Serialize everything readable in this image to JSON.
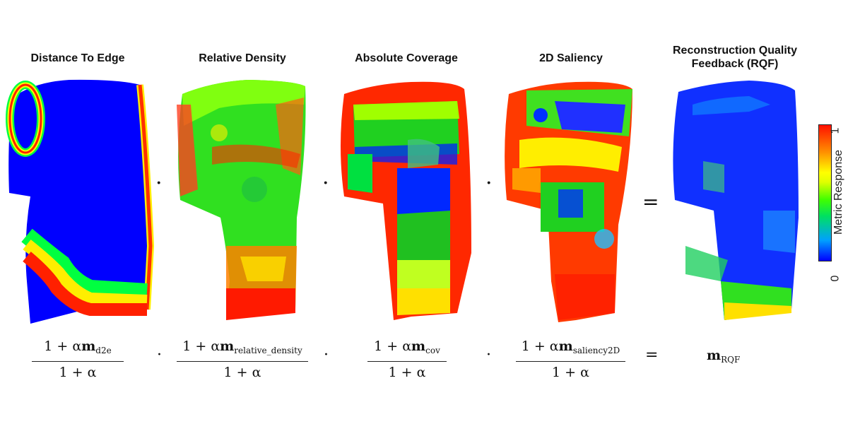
{
  "panels": [
    {
      "title": "Distance To Edge"
    },
    {
      "title": "Relative Density"
    },
    {
      "title": "Absolute Coverage"
    },
    {
      "title": "2D Saliency"
    },
    {
      "title_line1": "Reconstruction Quality",
      "title_line2": "Feedback (RQF)"
    }
  ],
  "operators": {
    "dot": "·",
    "equals": "="
  },
  "formulas": {
    "one_plus_alpha": "1 + α",
    "m": "m",
    "sub_d2e": "d2e",
    "sub_relative_density": "relative_density",
    "sub_cov": "cov",
    "sub_saliency": "saliency2D",
    "sub_rqf": "RQF"
  },
  "colorbar": {
    "label": "Metric Response",
    "min": "0",
    "max": "1",
    "colors": [
      "#0000ff",
      "#00e060",
      "#ffff00",
      "#ff1000"
    ]
  }
}
